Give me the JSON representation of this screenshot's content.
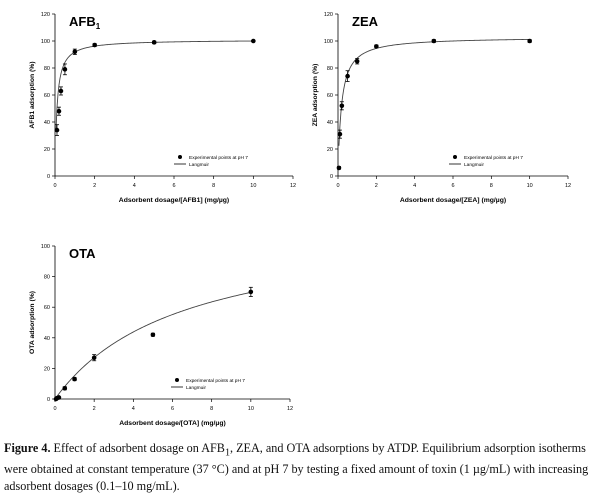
{
  "chart_data": [
    {
      "type": "scatter",
      "title": "AFB",
      "title_sub": "1",
      "xlabel": "Adsorbent dosage/[AFB1] (mg/µg)",
      "ylabel": "AFB1 adsorption (%)",
      "xlim": [
        0,
        12
      ],
      "ylim": [
        0,
        120
      ],
      "xticks": [
        "0",
        "2",
        "4",
        "6",
        "8",
        "10",
        "12"
      ],
      "yticks": [
        "0",
        "20",
        "40",
        "60",
        "80",
        "100",
        "120"
      ],
      "grid": false,
      "legend_position": "lower-right",
      "series": [
        {
          "name": "Experimental points at pH 7",
          "x": [
            0.1,
            0.2,
            0.3,
            0.5,
            1,
            2,
            5,
            10
          ],
          "y": [
            34,
            48,
            63,
            79,
            92,
            97,
            99,
            100
          ],
          "err": [
            4,
            3,
            3,
            4,
            2,
            1,
            1,
            0.5
          ]
        },
        {
          "name": "Langmuir",
          "curve": "langmuir",
          "qmax": 101,
          "k": 0.1
        }
      ]
    },
    {
      "type": "scatter",
      "title": "ZEA",
      "title_sub": "",
      "xlabel": "Adsorbent dosage/[ZEA] (mg/µg)",
      "ylabel": "ZEA adsorption (%)",
      "xlim": [
        0,
        12
      ],
      "ylim": [
        0,
        120
      ],
      "xticks": [
        "0",
        "2",
        "4",
        "6",
        "8",
        "10",
        "12"
      ],
      "yticks": [
        "0",
        "20",
        "40",
        "60",
        "80",
        "100",
        "120"
      ],
      "grid": false,
      "legend_position": "lower-right",
      "series": [
        {
          "name": "Experimental points at pH 7",
          "x": [
            0.05,
            0.1,
            0.2,
            0.5,
            1,
            2,
            5,
            10
          ],
          "y": [
            6,
            31,
            52,
            74,
            85,
            96,
            100,
            100
          ],
          "err": [
            1,
            3,
            3,
            4,
            2,
            1,
            1,
            1
          ]
        },
        {
          "name": "Langmuir",
          "curve": "langmuir",
          "qmax": 103,
          "k": 0.18
        }
      ]
    },
    {
      "type": "scatter",
      "title": "OTA",
      "title_sub": "",
      "xlabel": "Adsorbent dosage/[OTA] (mg/µg)",
      "ylabel": "OTA adsorption (%)",
      "xlim": [
        0,
        12
      ],
      "ylim": [
        0,
        100
      ],
      "xticks": [
        "0",
        "2",
        "4",
        "6",
        "8",
        "10",
        "12"
      ],
      "yticks": [
        "0",
        "20",
        "40",
        "60",
        "80",
        "100"
      ],
      "grid": false,
      "legend_position": "lower-right",
      "series": [
        {
          "name": "Experimental points at pH 7",
          "x": [
            0.05,
            0.1,
            0.2,
            0.5,
            1,
            2,
            5,
            10
          ],
          "y": [
            0,
            0.5,
            1,
            7,
            13,
            27,
            42,
            70
          ],
          "err": [
            0.5,
            0.5,
            0.5,
            1,
            1,
            2,
            1,
            3
          ]
        },
        {
          "name": "Langmuir",
          "curve": "langmuir",
          "qmax": 115,
          "k": 6.5
        }
      ]
    }
  ],
  "caption": {
    "label": "Figure 4.",
    "text_1": " Effect of adsorbent dosage on AFB",
    "sub_1": "1",
    "text_2": ", ZEA, and OTA adsorptions by ATDP. Equilibrium adsorption isotherms were obtained at constant temperature (37 °C) and at pH 7 by testing a fixed amount of toxin (1 µg/mL) with increasing adsorbent dosages (0.1–10 mg/mL)."
  }
}
